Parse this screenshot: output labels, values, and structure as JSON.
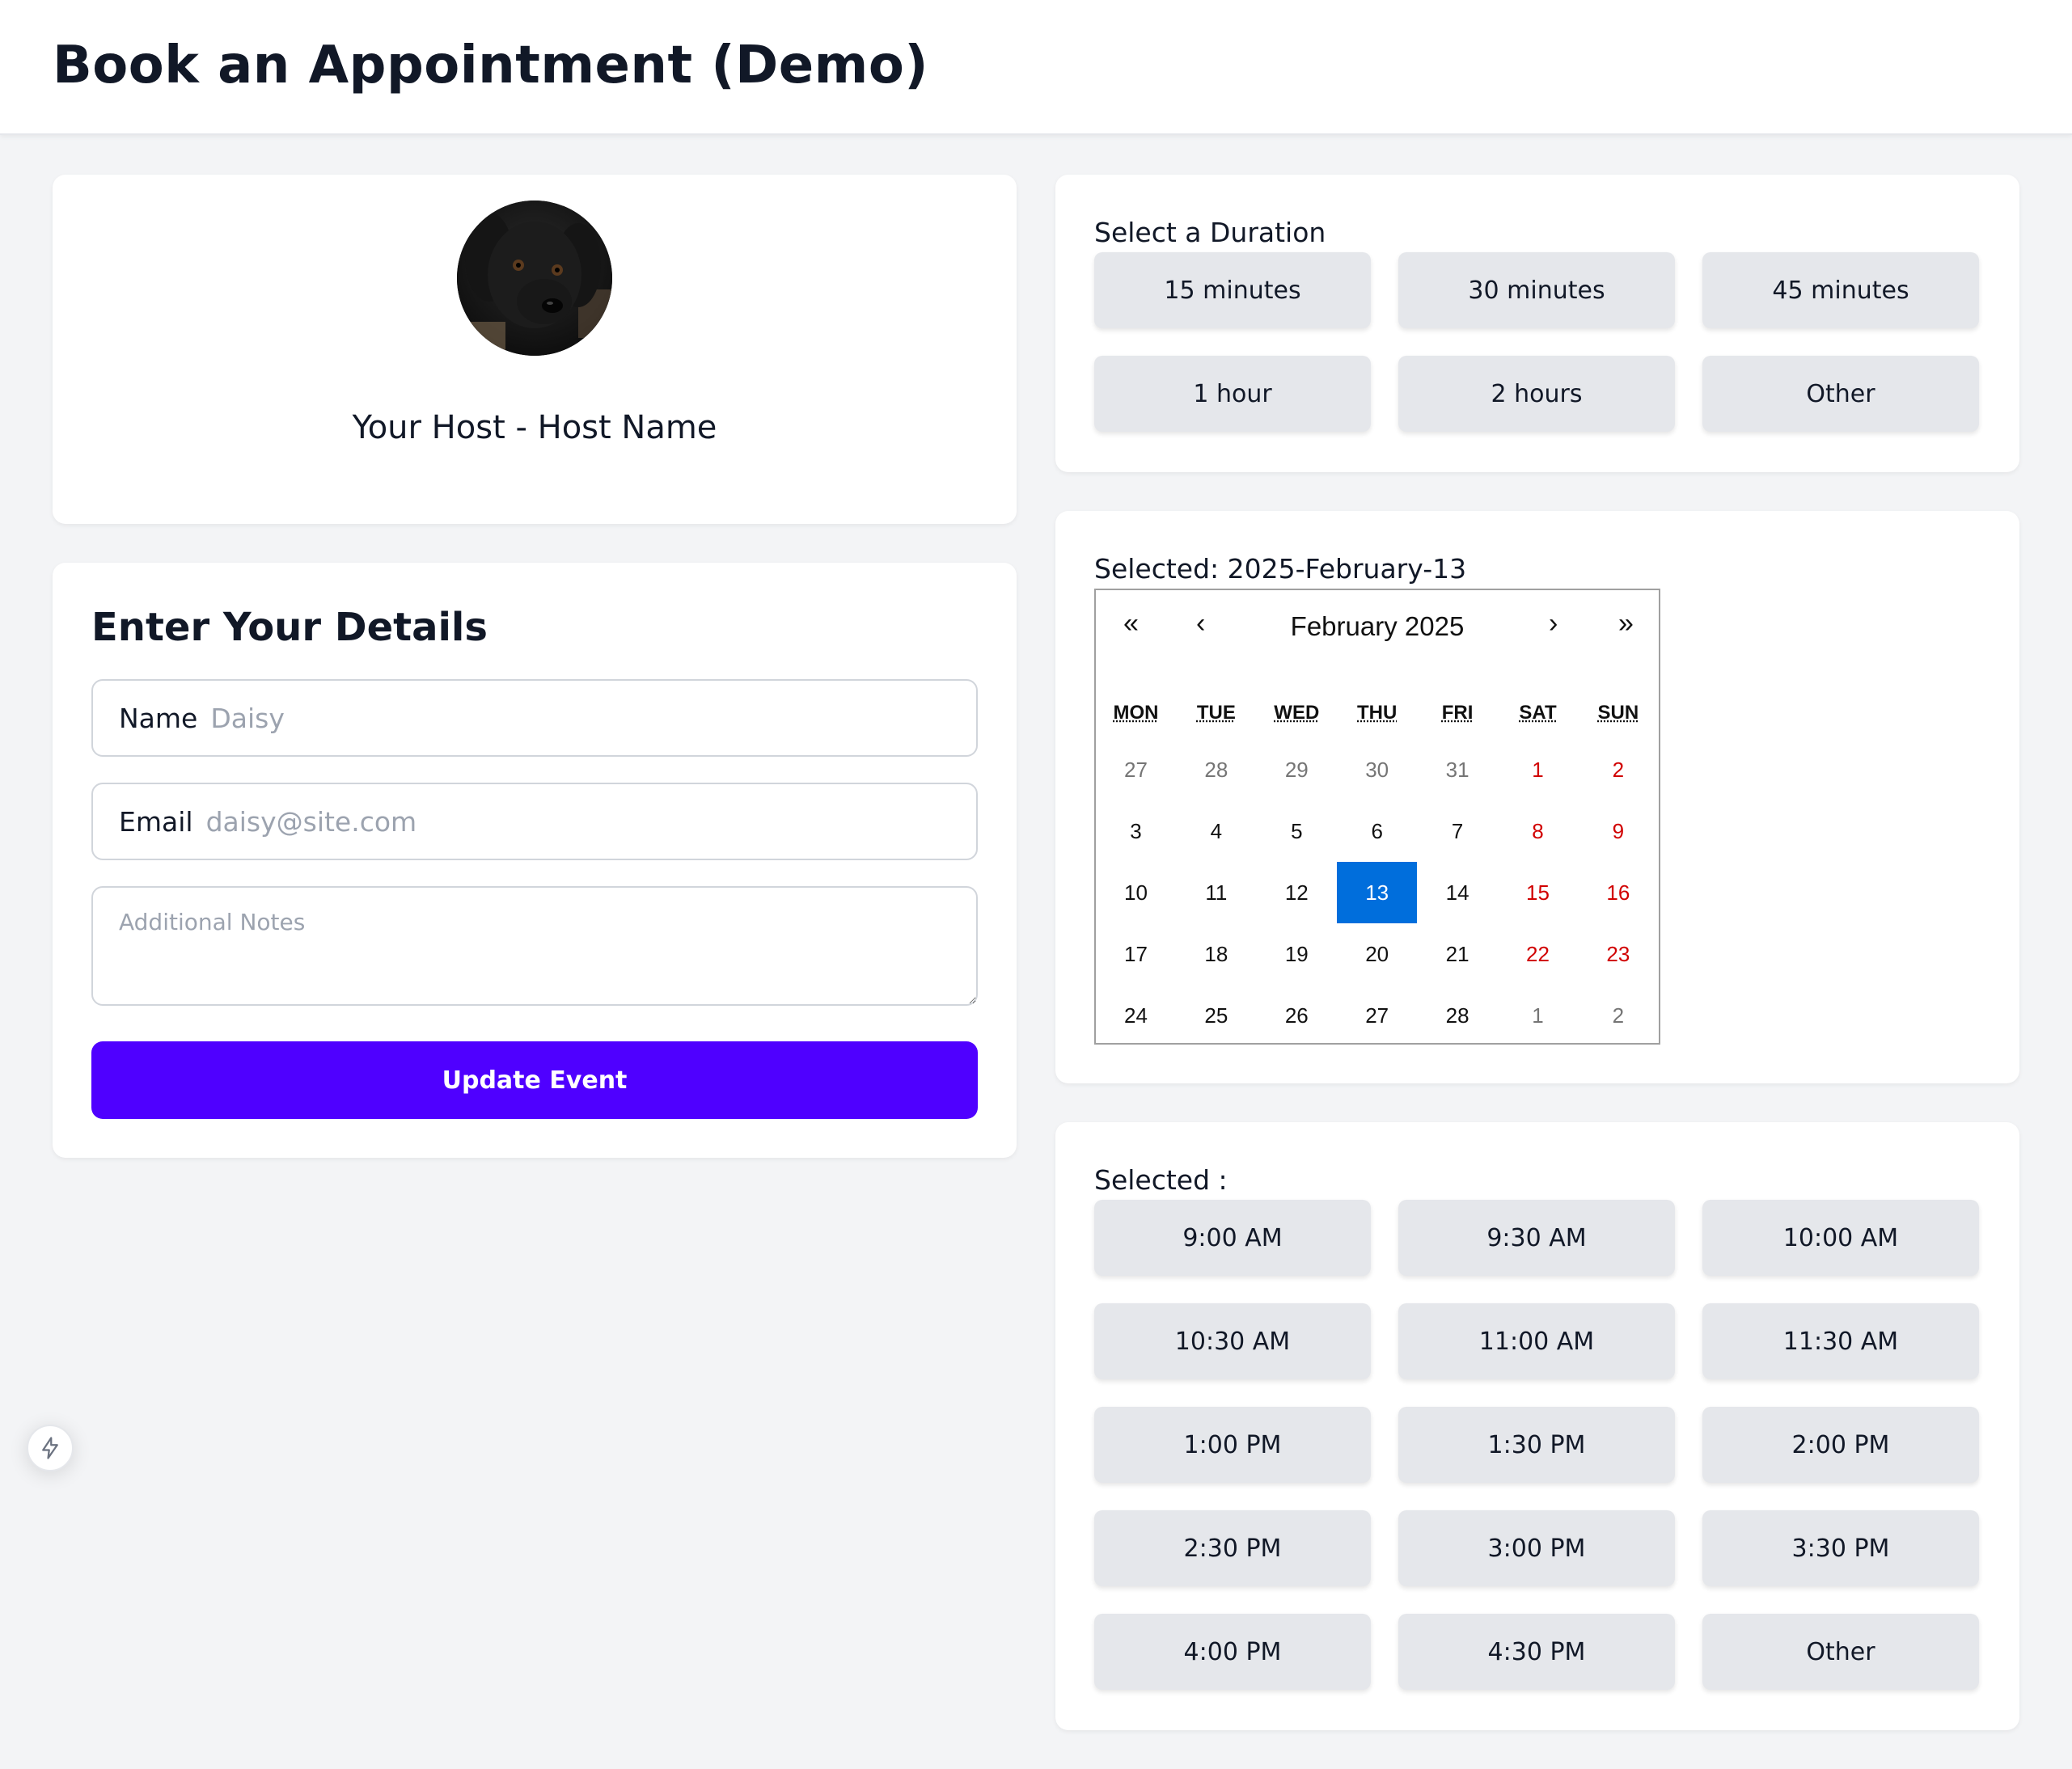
{
  "header": {
    "title": "Book an Appointment (Demo)"
  },
  "host": {
    "name": "Your Host - Host Name"
  },
  "details": {
    "title": "Enter Your Details",
    "name_label": "Name",
    "name_placeholder": "Daisy",
    "email_label": "Email",
    "email_placeholder": "daisy@site.com",
    "notes_placeholder": "Additional Notes",
    "submit_label": "Update Event"
  },
  "duration": {
    "label": "Select a Duration",
    "options": [
      "15 minutes",
      "30 minutes",
      "45 minutes",
      "1 hour",
      "2 hours",
      "Other"
    ]
  },
  "calendar": {
    "selected_text": "Selected: 2025-February-13",
    "prev_year": "«",
    "prev_month": "‹",
    "month_label": "February 2025",
    "next_month": "›",
    "next_year": "»",
    "weekdays": [
      "MON",
      "TUE",
      "WED",
      "THU",
      "FRI",
      "SAT",
      "SUN"
    ],
    "weeks": [
      [
        "27",
        "28",
        "29",
        "30",
        "31",
        "1",
        "2"
      ],
      [
        "3",
        "4",
        "5",
        "6",
        "7",
        "8",
        "9"
      ],
      [
        "10",
        "11",
        "12",
        "13",
        "14",
        "15",
        "16"
      ],
      [
        "17",
        "18",
        "19",
        "20",
        "21",
        "22",
        "23"
      ],
      [
        "24",
        "25",
        "26",
        "27",
        "28",
        "1",
        "2"
      ]
    ],
    "selected_day": "13",
    "selected_color": "#006edc",
    "weekend_color": "#d10000"
  },
  "times": {
    "label": "Selected :",
    "options": [
      "9:00 AM",
      "9:30 AM",
      "10:00 AM",
      "10:30 AM",
      "11:00 AM",
      "11:30 AM",
      "1:00 PM",
      "1:30 PM",
      "2:00 PM",
      "2:30 PM",
      "3:00 PM",
      "3:30 PM",
      "4:00 PM",
      "4:30 PM",
      "Other"
    ]
  },
  "icons": {
    "floating": "bolt-icon",
    "avatar": "dog-avatar"
  },
  "colors": {
    "primary": "#4f00ff",
    "background": "#f3f4f6"
  }
}
